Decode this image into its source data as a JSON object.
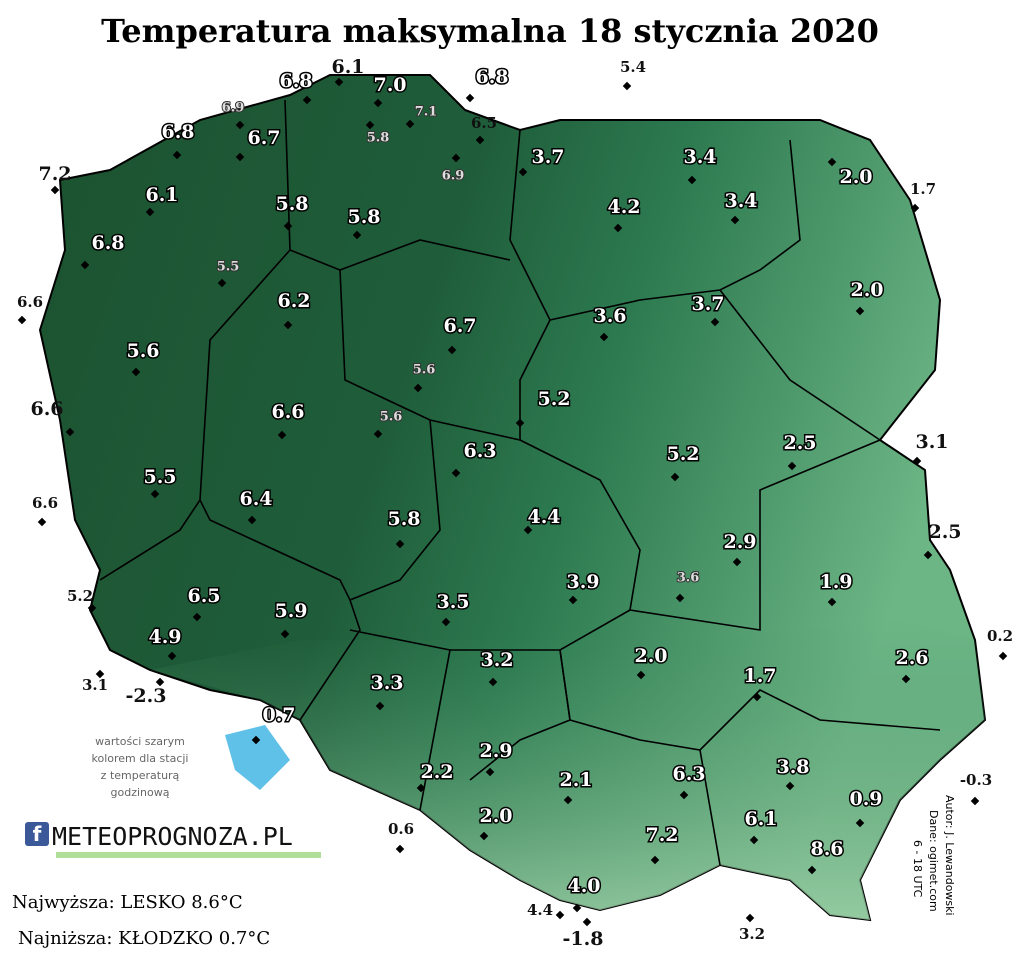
{
  "header": {
    "title": "Temperatura maksymalna 18 stycznia 2020"
  },
  "stations": [
    "6.1",
    "6.8",
    "7.0",
    "6.8",
    "5.4",
    "6.9",
    "7.1",
    "6.5",
    "6.8",
    "6.7",
    "5.8",
    "3.7",
    "3.4",
    "2.0",
    "6.9",
    "7.2",
    "1.7",
    "6.1",
    "5.8",
    "5.8",
    "4.2",
    "3.4",
    "6.8",
    "5.5",
    "2.0",
    "6.6",
    "6.2",
    "3.6",
    "3.7",
    "6.7",
    "5.6",
    "5.6",
    "6.6",
    "5.2",
    "6.6",
    "5.6",
    "2.5",
    "3.1",
    "6.3",
    "5.2",
    "5.5",
    "6.6",
    "6.4",
    "5.8",
    "4.4",
    "2.5",
    "2.9",
    "1.9",
    "3.6",
    "3.9",
    "5.2",
    "6.5",
    "5.9",
    "3.5",
    "4.9",
    "0.2",
    "2.0",
    "3.2",
    "2.6",
    "3.1",
    "-2.3",
    "3.3",
    "1.7",
    "0.7",
    "2.9",
    "3.8",
    "2.2",
    "2.1",
    "6.3",
    "-0.3",
    "0.9",
    "2.0",
    "6.1",
    "0.6",
    "7.2",
    "8.6",
    "4.0",
    "4.4",
    "3.2",
    "-1.8"
  ],
  "note": [
    "wartości szarym",
    "kolorem dla stacji",
    "z temperaturą",
    "godzinową"
  ],
  "logo": "METEOPROGNOZA.PL",
  "extremes": {
    "highest": "Najwyższa: LESKO 8.6°C",
    "lowest": "Najniższa: KŁODZKO 0.7°C"
  },
  "credits": [
    "Autor: J. Lewandowski",
    "Dane: ogimet.com",
    "6 - 18 UTC"
  ]
}
